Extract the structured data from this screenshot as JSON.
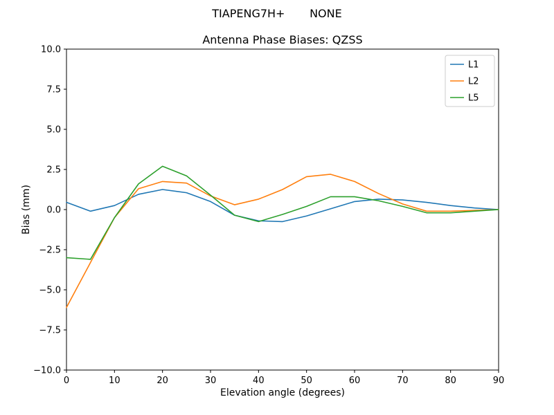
{
  "header": {
    "suptitle": "TIAPENG7H+       NONE"
  },
  "chart_data": {
    "type": "line",
    "title": "Antenna Phase Biases: QZSS",
    "xlabel": "Elevation angle (degrees)",
    "ylabel": "Bias (mm)",
    "xlim": [
      0,
      90
    ],
    "ylim": [
      -10,
      10
    ],
    "grid": false,
    "legend_position": "upper right",
    "x_ticks": [
      0,
      10,
      20,
      30,
      40,
      50,
      60,
      70,
      80,
      90
    ],
    "y_ticks": [
      -10,
      -7.5,
      -5,
      -2.5,
      0,
      2.5,
      5,
      7.5,
      10
    ],
    "y_tick_labels": [
      "−10.0",
      "−7.5",
      "−5.0",
      "−2.5",
      "0.0",
      "2.5",
      "5.0",
      "7.5",
      "10.0"
    ],
    "x": [
      0,
      5,
      10,
      15,
      20,
      25,
      30,
      35,
      40,
      45,
      50,
      55,
      60,
      65,
      70,
      75,
      80,
      85,
      90
    ],
    "series": [
      {
        "name": "L1",
        "color": "#1f77b4",
        "values": [
          0.45,
          -0.1,
          0.25,
          0.95,
          1.25,
          1.05,
          0.5,
          -0.35,
          -0.7,
          -0.75,
          -0.4,
          0.05,
          0.5,
          0.65,
          0.6,
          0.45,
          0.25,
          0.1,
          0.0
        ]
      },
      {
        "name": "L2",
        "color": "#ff7f0e",
        "values": [
          -6.1,
          -3.3,
          -0.5,
          1.3,
          1.75,
          1.65,
          0.85,
          0.3,
          0.65,
          1.25,
          2.05,
          2.2,
          1.75,
          1.0,
          0.35,
          -0.1,
          -0.1,
          -0.05,
          0.0
        ]
      },
      {
        "name": "L5",
        "color": "#2ca02c",
        "values": [
          -3.0,
          -3.1,
          -0.5,
          1.6,
          2.7,
          2.1,
          0.9,
          -0.35,
          -0.75,
          -0.3,
          0.2,
          0.8,
          0.8,
          0.55,
          0.2,
          -0.2,
          -0.2,
          -0.1,
          0.0
        ]
      }
    ]
  }
}
